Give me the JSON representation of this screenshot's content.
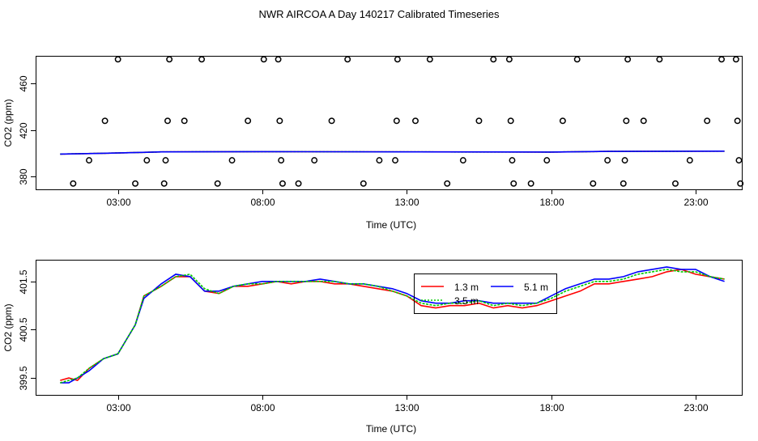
{
  "chart_data": [
    {
      "type": "scatter",
      "title": "NWR AIRCOA A  Day 140217  Calibrated Timeseries",
      "xlabel": "Time (UTC)",
      "ylabel": "CO2 (ppm)",
      "xlim": [
        0.15,
        24.6
      ],
      "ylim": [
        369,
        484
      ],
      "xticks": [
        3,
        8,
        13,
        18,
        23
      ],
      "xtick_labels": [
        "03:00",
        "08:00",
        "13:00",
        "18:00",
        "23:00"
      ],
      "yticks": [
        380,
        420,
        460
      ],
      "ytick_labels": [
        "380",
        "420",
        "460"
      ],
      "reference_points": {
        "name": "Calibration standards",
        "points": [
          [
            1.45,
            374
          ],
          [
            2.0,
            394
          ],
          [
            2.55,
            428
          ],
          [
            3.0,
            481
          ],
          [
            3.6,
            374
          ],
          [
            4.0,
            394
          ],
          [
            4.6,
            374
          ],
          [
            4.65,
            394
          ],
          [
            4.72,
            428
          ],
          [
            4.78,
            481
          ],
          [
            5.3,
            428
          ],
          [
            5.9,
            481
          ],
          [
            6.45,
            374
          ],
          [
            6.95,
            394
          ],
          [
            7.5,
            428
          ],
          [
            8.05,
            481
          ],
          [
            8.55,
            481
          ],
          [
            8.6,
            428
          ],
          [
            8.65,
            394
          ],
          [
            8.7,
            374
          ],
          [
            9.25,
            374
          ],
          [
            9.8,
            394
          ],
          [
            10.4,
            428
          ],
          [
            10.95,
            481
          ],
          [
            11.5,
            374
          ],
          [
            12.05,
            394
          ],
          [
            12.6,
            394
          ],
          [
            12.65,
            428
          ],
          [
            12.68,
            481
          ],
          [
            13.3,
            428
          ],
          [
            13.8,
            481
          ],
          [
            14.4,
            374
          ],
          [
            14.95,
            394
          ],
          [
            15.5,
            428
          ],
          [
            16.0,
            481
          ],
          [
            16.55,
            481
          ],
          [
            16.6,
            428
          ],
          [
            16.65,
            394
          ],
          [
            16.7,
            374
          ],
          [
            17.3,
            374
          ],
          [
            17.85,
            394
          ],
          [
            18.4,
            428
          ],
          [
            18.9,
            481
          ],
          [
            19.45,
            374
          ],
          [
            19.95,
            394
          ],
          [
            20.5,
            374
          ],
          [
            20.55,
            394
          ],
          [
            20.6,
            428
          ],
          [
            20.65,
            481
          ],
          [
            21.2,
            428
          ],
          [
            21.75,
            481
          ],
          [
            22.3,
            374
          ],
          [
            22.8,
            394
          ],
          [
            23.4,
            428
          ],
          [
            23.9,
            481
          ],
          [
            24.4,
            481
          ],
          [
            24.45,
            428
          ],
          [
            24.5,
            394
          ],
          [
            24.55,
            374
          ]
        ]
      },
      "series": [
        {
          "name": "1.3 m",
          "color": "#ff0000",
          "x": [
            1.0,
            2.5,
            4.0,
            4.5,
            8.0,
            13.0,
            18.0,
            20.0,
            24.0
          ],
          "y": [
            399.4,
            400.1,
            400.9,
            401.3,
            401.5,
            401.3,
            401.1,
            401.7,
            401.9
          ]
        },
        {
          "name": "3.5 m",
          "color": "#00cc00",
          "x": [
            1.0,
            2.5,
            4.0,
            4.5,
            8.0,
            13.0,
            18.0,
            20.0,
            24.0
          ],
          "y": [
            399.4,
            400.1,
            400.9,
            401.3,
            401.5,
            401.3,
            401.1,
            401.7,
            401.9
          ]
        },
        {
          "name": "5.1 m",
          "color": "#0000ff",
          "x": [
            1.0,
            2.5,
            4.0,
            4.5,
            8.0,
            13.0,
            18.0,
            20.0,
            24.0
          ],
          "y": [
            399.4,
            400.1,
            400.9,
            401.3,
            401.5,
            401.3,
            401.1,
            401.7,
            401.9
          ]
        }
      ]
    },
    {
      "type": "line",
      "xlabel": "Time (UTC)",
      "ylabel": "CO2 (ppm)",
      "xlim": [
        0.15,
        24.6
      ],
      "ylim": [
        399.15,
        401.95
      ],
      "xticks": [
        3,
        8,
        13,
        18,
        23
      ],
      "xtick_labels": [
        "03:00",
        "08:00",
        "13:00",
        "18:00",
        "23:00"
      ],
      "yticks": [
        399.5,
        400.5,
        401.5
      ],
      "ytick_labels": [
        "399.5",
        "400.5",
        "401.5"
      ],
      "legend": {
        "placement": "top-center",
        "entries": [
          "1.3 m",
          "5.1 m",
          "3.5 m"
        ]
      },
      "series": [
        {
          "name": "1.3 m",
          "color": "#ff0000",
          "x": [
            1.0,
            1.3,
            1.6,
            2.0,
            2.5,
            3.0,
            3.3,
            3.6,
            3.9,
            4.2,
            4.5,
            5.0,
            5.5,
            6.0,
            6.5,
            7.0,
            7.5,
            8.0,
            8.5,
            9.0,
            9.5,
            10.0,
            10.5,
            11.0,
            11.5,
            12.0,
            12.5,
            13.0,
            13.5,
            14.0,
            14.5,
            15.0,
            15.5,
            16.0,
            16.5,
            17.0,
            17.5,
            18.0,
            18.5,
            19.0,
            19.5,
            20.0,
            20.5,
            21.0,
            21.5,
            22.0,
            22.5,
            23.0,
            23.5,
            24.0
          ],
          "y": [
            399.45,
            399.5,
            399.45,
            399.7,
            399.9,
            400.0,
            400.3,
            400.6,
            401.2,
            401.3,
            401.4,
            401.6,
            401.6,
            401.3,
            401.25,
            401.4,
            401.4,
            401.45,
            401.5,
            401.45,
            401.5,
            401.5,
            401.45,
            401.45,
            401.4,
            401.35,
            401.3,
            401.2,
            401.0,
            400.95,
            401.0,
            401.0,
            401.05,
            400.95,
            401.0,
            400.95,
            401.0,
            401.1,
            401.2,
            401.3,
            401.45,
            401.45,
            401.5,
            401.55,
            401.6,
            401.7,
            401.75,
            401.65,
            401.6,
            401.55
          ]
        },
        {
          "name": "5.1 m",
          "color": "#0000ff",
          "x": [
            1.0,
            1.3,
            1.6,
            2.0,
            2.5,
            3.0,
            3.3,
            3.6,
            3.9,
            4.2,
            4.5,
            5.0,
            5.5,
            6.0,
            6.5,
            7.0,
            7.5,
            8.0,
            8.5,
            9.0,
            9.5,
            10.0,
            10.5,
            11.0,
            11.5,
            12.0,
            12.5,
            13.0,
            13.5,
            14.0,
            14.5,
            15.0,
            15.5,
            16.0,
            16.5,
            17.0,
            17.5,
            18.0,
            18.5,
            19.0,
            19.5,
            20.0,
            20.5,
            21.0,
            21.5,
            22.0,
            22.5,
            23.0,
            23.5,
            24.0
          ],
          "y": [
            399.4,
            399.4,
            399.5,
            399.65,
            399.9,
            400.0,
            400.3,
            400.6,
            401.15,
            401.3,
            401.45,
            401.65,
            401.6,
            401.3,
            401.3,
            401.4,
            401.45,
            401.5,
            401.5,
            401.5,
            401.5,
            401.55,
            401.5,
            401.45,
            401.45,
            401.4,
            401.35,
            401.25,
            401.1,
            401.05,
            401.05,
            401.1,
            401.1,
            401.05,
            401.05,
            401.05,
            401.05,
            401.2,
            401.35,
            401.45,
            401.55,
            401.55,
            401.6,
            401.7,
            401.75,
            401.8,
            401.75,
            401.75,
            401.6,
            401.5
          ]
        },
        {
          "name": "3.5 m",
          "color": "#00cc00",
          "x": [
            1.0,
            1.3,
            1.6,
            2.0,
            2.5,
            3.0,
            3.3,
            3.6,
            3.9,
            4.2,
            4.5,
            5.0,
            5.5,
            6.0,
            6.5,
            7.0,
            7.5,
            8.0,
            8.5,
            9.0,
            9.5,
            10.0,
            10.5,
            11.0,
            11.5,
            12.0,
            12.5,
            13.0,
            13.5,
            14.0,
            14.5,
            15.0,
            15.5,
            16.0,
            16.5,
            17.0,
            17.5,
            18.0,
            18.5,
            19.0,
            19.5,
            20.0,
            20.5,
            21.0,
            21.5,
            22.0,
            22.5,
            23.0,
            23.5,
            24.0
          ],
          "y": [
            399.4,
            399.45,
            399.5,
            399.7,
            399.9,
            400.0,
            400.3,
            400.6,
            401.2,
            401.3,
            401.4,
            401.6,
            401.65,
            401.35,
            401.25,
            401.4,
            401.45,
            401.45,
            401.5,
            401.5,
            401.5,
            401.5,
            401.5,
            401.45,
            401.45,
            401.4,
            401.3,
            401.2,
            401.05,
            401.0,
            401.05,
            401.05,
            401.1,
            401.0,
            401.05,
            401.0,
            401.05,
            401.15,
            401.3,
            401.4,
            401.5,
            401.5,
            401.55,
            401.65,
            401.7,
            401.75,
            401.7,
            401.7,
            401.6,
            401.55
          ]
        }
      ]
    }
  ]
}
